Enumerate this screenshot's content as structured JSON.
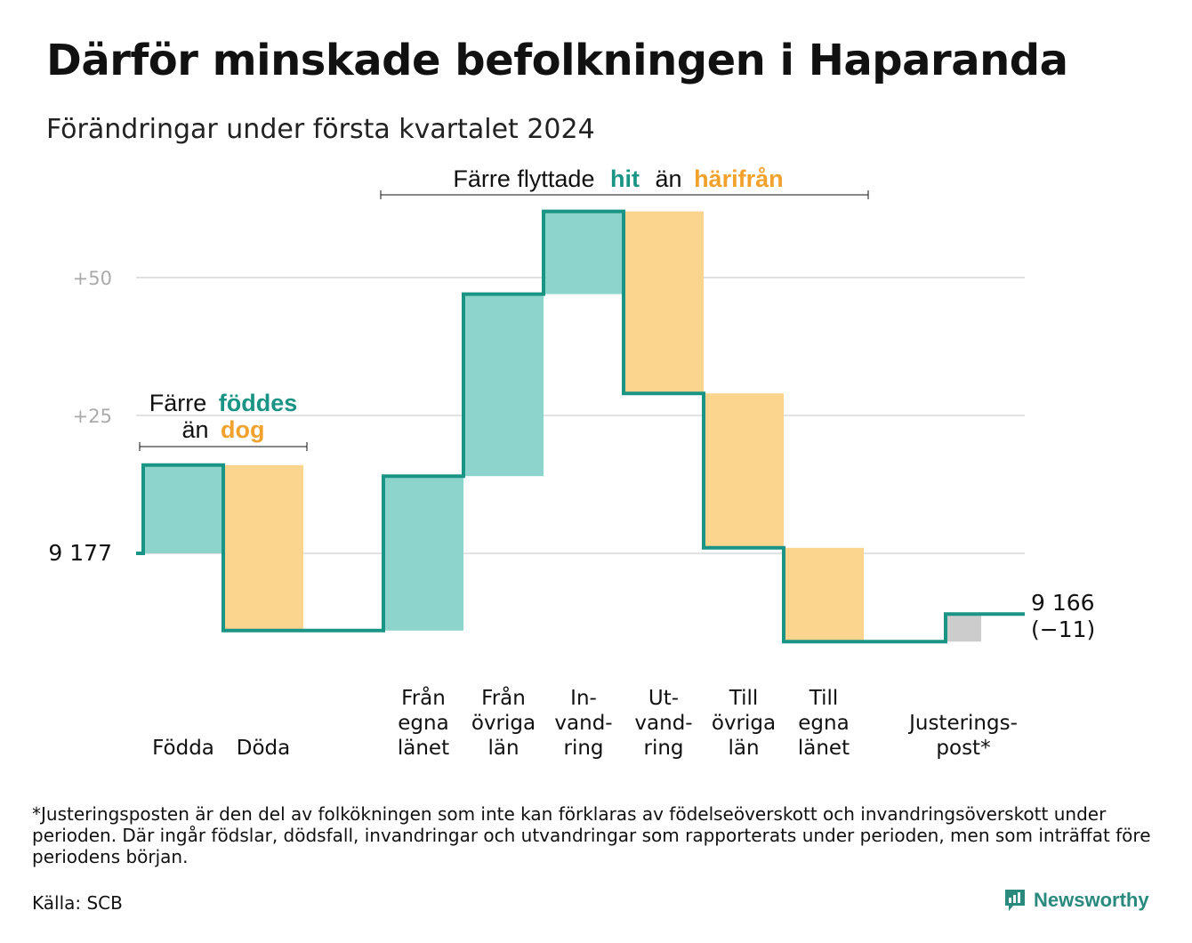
{
  "title": "Därför minskade befolkningen i Haparanda",
  "subtitle": "Förändringar under första kvartalet 2024",
  "chart_data": {
    "type": "waterfall",
    "start": {
      "label": "9  177",
      "value": 9177
    },
    "end": {
      "label_value": "9 166",
      "label_change": "(−11)",
      "value": 9166,
      "change": -11
    },
    "y_ticks": [
      {
        "label": "+50",
        "value": 50
      },
      {
        "label": "+25",
        "value": 25
      },
      {
        "label": "9  177",
        "value": 0
      }
    ],
    "ylim": [
      -20,
      70
    ],
    "grid": true,
    "steps": [
      {
        "lines": [
          "Födda"
        ],
        "value": 16,
        "kind": "in"
      },
      {
        "lines": [
          "Döda"
        ],
        "value": -30,
        "kind": "out"
      },
      {
        "lines": [
          "Från",
          "egna",
          "länet"
        ],
        "value": 28,
        "kind": "in"
      },
      {
        "lines": [
          "Från",
          "övriga",
          "län"
        ],
        "value": 33,
        "kind": "in"
      },
      {
        "lines": [
          "In-",
          "vand-",
          "ring"
        ],
        "value": 15,
        "kind": "in"
      },
      {
        "lines": [
          "Ut-",
          "vand-",
          "ring"
        ],
        "value": -33,
        "kind": "out"
      },
      {
        "lines": [
          "Till",
          "övriga",
          "län"
        ],
        "value": -28,
        "kind": "out"
      },
      {
        "lines": [
          "Till",
          "egna",
          "länet"
        ],
        "value": -17,
        "kind": "out"
      },
      {
        "lines": [
          "Justerings-",
          "post*"
        ],
        "value": 5,
        "kind": "adjust"
      }
    ],
    "annotations": {
      "births": {
        "line1_pre": "Färre",
        "line1_hl": "föddes",
        "line2_pre": "än",
        "line2_hl": "dog"
      },
      "migration": {
        "pre": "Färre flyttade",
        "hl1": "hit",
        "mid": "än",
        "hl2": "härifrån"
      }
    },
    "colors": {
      "in": "#8dd5cc",
      "out": "#fbd58e",
      "adjust": "#cccccc",
      "step_line": "#1a9484",
      "teal_text": "#1a9484",
      "orange_text": "#f2a12c",
      "grid": "#e2e2e2"
    }
  },
  "footnote": "*Justeringsposten är den del av folkökningen som inte kan förklaras av födelseöverskott och invandringsöverskott under perioden. Där ingår födslar, dödsfall, invandringar och utvandringar som rapporterats under perioden, men som inträffat före periodens början.",
  "source": "Källa: SCB",
  "brand": {
    "name": "Newsworthy",
    "icon": "newsworthy-logo-icon"
  }
}
